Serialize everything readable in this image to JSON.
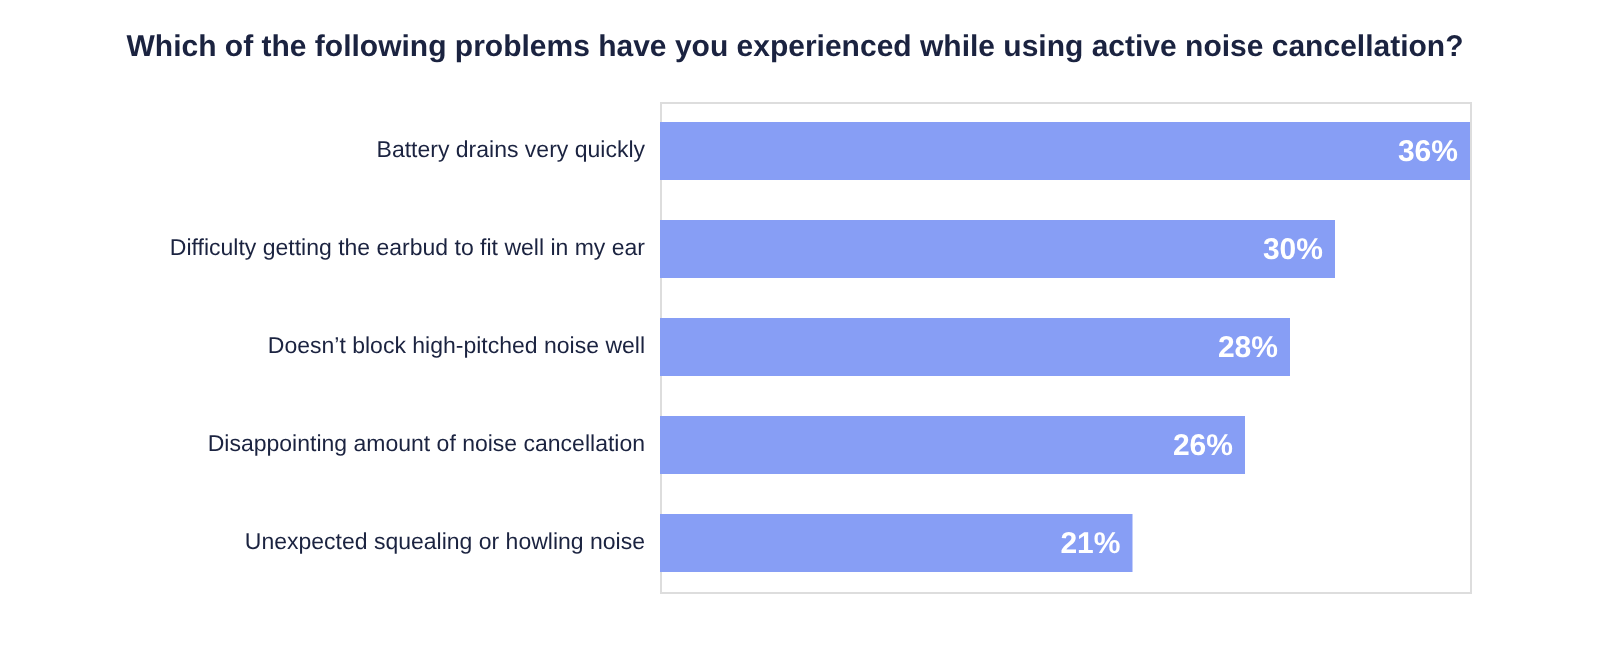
{
  "chart_data": {
    "type": "bar",
    "orientation": "horizontal",
    "title": "Which of the following problems have you experienced while using active noise cancellation?",
    "categories": [
      "Battery drains very quickly",
      "Difficulty getting the earbud to fit well in my ear",
      "Doesn’t block high-pitched noise well",
      "Disappointing amount of noise cancellation",
      "Unexpected squealing or howling noise"
    ],
    "values": [
      36,
      30,
      28,
      26,
      21
    ],
    "value_labels": [
      "36%",
      "30%",
      "28%",
      "26%",
      "21%"
    ],
    "color": "#879ef5"
  }
}
